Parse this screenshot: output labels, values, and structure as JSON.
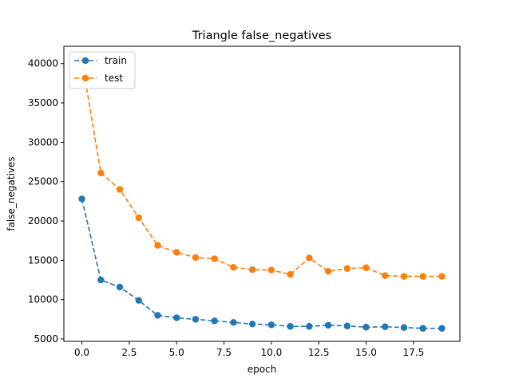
{
  "chart_data": {
    "type": "line",
    "title": "Triangle false_negatives",
    "xlabel": "epoch",
    "ylabel": "false_negatives",
    "xlim": [
      -0.95,
      19.95
    ],
    "ylim": [
      4700,
      42200
    ],
    "xticks": [
      0,
      2.5,
      5,
      7.5,
      10,
      12.5,
      15,
      17.5
    ],
    "xtick_labels": [
      "0.0",
      "2.5",
      "5.0",
      "7.5",
      "10.0",
      "12.5",
      "15.0",
      "17.5"
    ],
    "yticks": [
      5000,
      10000,
      15000,
      20000,
      25000,
      30000,
      35000,
      40000
    ],
    "ytick_labels": [
      "5000",
      "10000",
      "15000",
      "20000",
      "25000",
      "30000",
      "35000",
      "40000"
    ],
    "grid": false,
    "legend_position": "top-left",
    "x": [
      0,
      1,
      2,
      3,
      4,
      5,
      6,
      7,
      8,
      9,
      10,
      11,
      12,
      13,
      14,
      15,
      16,
      17,
      18,
      19
    ],
    "series": [
      {
        "name": "train",
        "color": "#1f77b4",
        "linestyle": "dashed",
        "marker": "circle",
        "values": [
          22800,
          12500,
          11600,
          9900,
          8000,
          7700,
          7500,
          7300,
          7100,
          6900,
          6800,
          6600,
          6600,
          6750,
          6650,
          6500,
          6550,
          6450,
          6350,
          6350
        ]
      },
      {
        "name": "test",
        "color": "#ff7f0e",
        "linestyle": "dashed",
        "marker": "circle",
        "values": [
          40500,
          26100,
          24000,
          20400,
          16900,
          16000,
          15350,
          15200,
          14100,
          13800,
          13750,
          13200,
          15300,
          13600,
          13950,
          14050,
          13050,
          12950,
          12950,
          12950
        ]
      }
    ]
  }
}
